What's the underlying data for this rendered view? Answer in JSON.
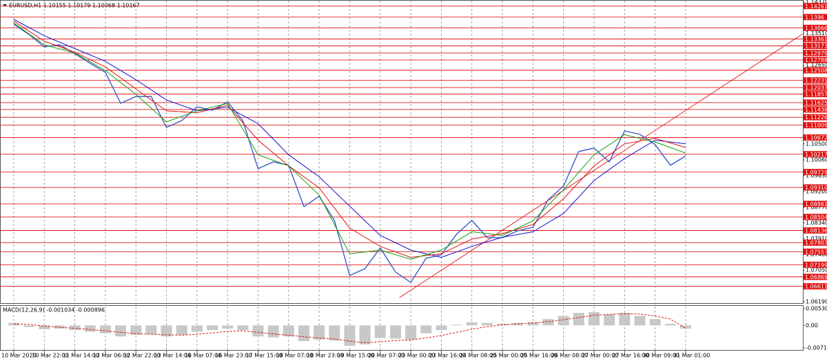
{
  "chart_data": [
    {
      "type": "line",
      "title": "EURUSD,H1  1.10155 1.10179 1.10068 1.10167",
      "xlim": [
        -7.2,
        413.4
      ],
      "ylim": [
        1.06152,
        1.14426
      ],
      "xticks": [
        {
          "value": 0,
          "label": "10 Mar 2020"
        },
        {
          "value": 16,
          "label": "10 Mar 22:00"
        },
        {
          "value": 32,
          "label": "11 Mar 14:00"
        },
        {
          "value": 48,
          "label": "12 Mar 06:00"
        },
        {
          "value": 64,
          "label": "12 Mar 22:00"
        },
        {
          "value": 80,
          "label": "13 Mar 14:00"
        },
        {
          "value": 96,
          "label": "16 Mar 07:00"
        },
        {
          "value": 112,
          "label": "16 Mar 23:00"
        },
        {
          "value": 128,
          "label": "17 Mar 15:00"
        },
        {
          "value": 144,
          "label": "18 Mar 07:00"
        },
        {
          "value": 160,
          "label": "18 Mar 23:00"
        },
        {
          "value": 176,
          "label": "19 Mar 15:00"
        },
        {
          "value": 192,
          "label": "20 Mar 07:00"
        },
        {
          "value": 208,
          "label": "23 Mar 00:00"
        },
        {
          "value": 224,
          "label": "23 Mar 16:00"
        },
        {
          "value": 240,
          "label": "24 Mar 08:00"
        },
        {
          "value": 256,
          "label": "25 Mar 00:00"
        },
        {
          "value": 272,
          "label": "25 Mar 16:00"
        },
        {
          "value": 288,
          "label": "26 Mar 08:00"
        },
        {
          "value": 304,
          "label": "27 Mar 00:00"
        },
        {
          "value": 320,
          "label": "27 Mar 16:00"
        },
        {
          "value": 336,
          "label": "30 Mar 09:00"
        },
        {
          "value": 352,
          "label": "31 Mar 01:00"
        }
      ],
      "yticks": [
        {
          "value": 1.1437,
          "label": "1.14370"
        },
        {
          "value": 1.1351,
          "label": "1.13510"
        },
        {
          "value": 1.1265,
          "label": "1.12650"
        },
        {
          "value": 1.105,
          "label": "1.10500"
        },
        {
          "value": 1.1006,
          "label": "1.10060"
        },
        {
          "value": 1.0963,
          "label": "1.09630"
        },
        {
          "value": 1.092,
          "label": "1.09200"
        },
        {
          "value": 1.0877,
          "label": "1.08770"
        },
        {
          "value": 1.0834,
          "label": "1.08340"
        },
        {
          "value": 1.0791,
          "label": "1.07910"
        },
        {
          "value": 1.0748,
          "label": "1.07480"
        },
        {
          "value": 1.0705,
          "label": "1.07050"
        },
        {
          "value": 1.0619,
          "label": "1.06190"
        }
      ],
      "levels": [
        1.14261,
        1.1396,
        1.13666,
        1.13361,
        1.13173,
        1.12979,
        1.12788,
        1.12508,
        1.12231,
        1.12037,
        1.11857,
        1.11625,
        1.11438,
        1.11226,
        1.11009,
        1.10672,
        1.10217,
        1.09729,
        {
          "value": 1.0931,
          "label": "1.09310"
        },
        1.08861,
        1.08504,
        1.08136,
        1.07803,
        1.07557,
        1.07199,
        1.06869,
        1.06611
      ],
      "level_color": "#e01010",
      "trendline": {
        "x": [
          202,
          413
        ],
        "values": [
          1.063,
          1.1349
        ],
        "color": "#e01010"
      },
      "x": [
        0,
        8,
        16,
        24,
        32,
        40,
        48,
        56,
        64,
        72,
        80,
        88,
        96,
        104,
        112,
        120,
        128,
        136,
        144,
        152,
        160,
        168,
        176,
        184,
        192,
        200,
        208,
        216,
        224,
        232,
        240,
        248,
        256,
        264,
        272,
        280,
        288,
        296,
        304,
        312,
        320,
        328,
        336,
        344,
        352
      ],
      "series": [
        {
          "color": "#3a5cc8",
          "width": 1.4,
          "values": [
            1.13768,
            1.13486,
            1.13148,
            1.13204,
            1.1296,
            1.12697,
            1.12452,
            1.11606,
            1.11794,
            1.11794,
            1.10948,
            1.11136,
            1.11512,
            1.11418,
            1.11644,
            1.11136,
            1.0982,
            1.10008,
            1.09914,
            1.08786,
            1.09068,
            1.0841,
            1.06906,
            1.07094,
            1.07658,
            1.07,
            1.06718,
            1.07376,
            1.0747,
            1.08034,
            1.0841,
            1.0794,
            1.0794,
            1.08128,
            1.08222,
            1.08974,
            1.0935,
            1.1029,
            1.10384,
            1.10008,
            1.10854,
            1.1076,
            1.10478,
            1.09914,
            1.10167
          ]
        },
        {
          "color": "#1010d0",
          "width": 1,
          "x": [
            0,
            16,
            32,
            48,
            64,
            80,
            96,
            112,
            128,
            144,
            160,
            176,
            192,
            208,
            224,
            240,
            256,
            272,
            288,
            304,
            320,
            336,
            352
          ],
          "values": [
            1.139,
            1.1345,
            1.131,
            1.1275,
            1.1225,
            1.117,
            1.114,
            1.115,
            1.1105,
            1.102,
            1.096,
            1.088,
            1.08,
            1.076,
            1.074,
            1.077,
            1.0795,
            1.081,
            1.086,
            1.095,
            1.101,
            1.106,
            1.105
          ]
        },
        {
          "color": "#e01010",
          "width": 1,
          "x": [
            0,
            16,
            32,
            48,
            64,
            80,
            96,
            112,
            128,
            144,
            160,
            176,
            192,
            208,
            224,
            240,
            256,
            272,
            288,
            304,
            320,
            336,
            352
          ],
          "values": [
            1.1385,
            1.133,
            1.13,
            1.126,
            1.12,
            1.114,
            1.1135,
            1.1155,
            1.106,
            1.099,
            1.093,
            1.082,
            1.077,
            1.074,
            1.075,
            1.079,
            1.0805,
            1.083,
            1.09,
            1.099,
            1.105,
            1.1065,
            1.104
          ]
        },
        {
          "color": "#10a010",
          "width": 1,
          "x": [
            0,
            16,
            32,
            48,
            64,
            80,
            96,
            112,
            128,
            144,
            160,
            176,
            192,
            208,
            224,
            240,
            256,
            272,
            288,
            304,
            320,
            336,
            352
          ],
          "values": [
            1.138,
            1.132,
            1.1298,
            1.125,
            1.1185,
            1.111,
            1.114,
            1.116,
            1.102,
            1.099,
            1.091,
            1.075,
            1.076,
            1.0735,
            1.076,
            1.081,
            1.08,
            1.084,
            1.0925,
            1.102,
            1.1075,
            1.1055,
            1.1025
          ]
        }
      ]
    },
    {
      "type": "macd",
      "title": "MACD(12,26,9) -0.001034 -0.000896",
      "xlim": [
        -7.2,
        413.4
      ],
      "ylim": [
        -0.0078,
        0.0062
      ],
      "yticks": [
        0.005305,
        {
          "value": 0,
          "label": "0.00"
        },
        -0.007148
      ],
      "x": [
        0,
        8,
        16,
        24,
        32,
        40,
        48,
        56,
        64,
        72,
        80,
        88,
        96,
        104,
        112,
        120,
        128,
        136,
        144,
        152,
        160,
        168,
        176,
        184,
        192,
        200,
        208,
        216,
        224,
        232,
        240,
        248,
        256,
        264,
        272,
        280,
        288,
        296,
        304,
        312,
        320,
        328,
        336,
        344,
        352
      ],
      "series": [
        {
          "type": "bar",
          "color": "#c8c8c8",
          "values": [
            0.0008,
            -0.0005,
            -0.0012,
            -0.001,
            -0.0015,
            -0.002,
            -0.0025,
            -0.0035,
            -0.003,
            -0.0028,
            -0.0035,
            -0.003,
            -0.002,
            -0.0015,
            -0.001,
            -0.0015,
            -0.0035,
            -0.0038,
            -0.0035,
            -0.005,
            -0.0045,
            -0.0048,
            -0.0065,
            -0.006,
            -0.004,
            -0.0042,
            -0.0045,
            -0.0025,
            -0.0015,
            0.0002,
            0.001,
            0.0008,
            0.0005,
            0.0008,
            0.001,
            0.002,
            0.003,
            0.004,
            0.0042,
            0.0035,
            0.004,
            0.003,
            0.002,
            0.0005,
            -0.001034
          ]
        },
        {
          "type": "line",
          "dashed": true,
          "color": "#e01010",
          "values": [
            0.0005,
            0.0003,
            -0.0002,
            -0.0006,
            -0.0009,
            -0.0013,
            -0.0017,
            -0.0022,
            -0.0026,
            -0.0028,
            -0.003,
            -0.0031,
            -0.0028,
            -0.0024,
            -0.0019,
            -0.0017,
            -0.0022,
            -0.0027,
            -0.0031,
            -0.0036,
            -0.004,
            -0.0043,
            -0.005,
            -0.0055,
            -0.0052,
            -0.0048,
            -0.0046,
            -0.004,
            -0.0032,
            -0.0022,
            -0.0012,
            -0.0004,
            0.0002,
            0.0005,
            0.0008,
            0.0012,
            0.0018,
            0.0025,
            0.0032,
            0.0035,
            0.0037,
            0.0036,
            0.003,
            0.002,
            -0.000896
          ]
        }
      ]
    }
  ]
}
